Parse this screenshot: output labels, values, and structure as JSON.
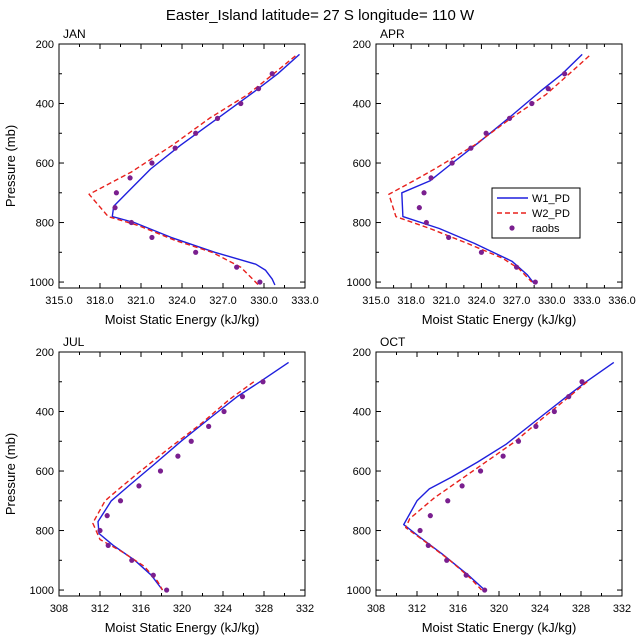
{
  "figure": {
    "title": "Easter_Island  latitude= 27 S longitude= 110 W"
  },
  "legend": {
    "entries": [
      {
        "label": "W1_PD",
        "color": "#1f1fdd",
        "style": "solid"
      },
      {
        "label": "W2_PD",
        "color": "#e8201c",
        "style": "dashed"
      },
      {
        "label": "raobs",
        "color": "#7a1f8f",
        "style": "marker"
      }
    ]
  },
  "chart_data": [
    {
      "type": "line",
      "panel_label": "JAN",
      "xlabel": "Moist Static Energy (kJ/kg)",
      "ylabel": "Pressure (mb)",
      "xlim": [
        315,
        333
      ],
      "xticks": [
        315,
        318,
        321,
        324,
        327,
        330,
        333
      ],
      "xtick_labels": [
        "315.0",
        "318.0",
        "321.0",
        "324.0",
        "327.0",
        "330.0",
        "333.0"
      ],
      "ylim": [
        200,
        1020
      ],
      "yticks": [
        200,
        400,
        600,
        800,
        1000
      ],
      "ytick_labels": [
        "200",
        "400",
        "600",
        "800",
        "1000"
      ],
      "series": [
        {
          "name": "W1_PD",
          "style": "line",
          "points": [
            [
              332.6,
              235
            ],
            [
              331.0,
              300
            ],
            [
              329.3,
              360
            ],
            [
              326.6,
              450
            ],
            [
              323.9,
              540
            ],
            [
              321.7,
              620
            ],
            [
              319.0,
              745
            ],
            [
              318.9,
              780
            ],
            [
              320.5,
              800
            ],
            [
              323.2,
              850
            ],
            [
              326.4,
              900
            ],
            [
              329.4,
              940
            ],
            [
              330.1,
              960
            ],
            [
              330.6,
              990
            ],
            [
              330.8,
              1010
            ]
          ]
        },
        {
          "name": "W2_PD",
          "style": "dashed",
          "points": [
            [
              332.3,
              240
            ],
            [
              330.7,
              300
            ],
            [
              328.8,
              370
            ],
            [
              326.0,
              450
            ],
            [
              323.3,
              540
            ],
            [
              320.3,
              630
            ],
            [
              317.2,
              705
            ],
            [
              318.6,
              780
            ],
            [
              320.8,
              810
            ],
            [
              323.5,
              860
            ],
            [
              326.2,
              900
            ],
            [
              328.3,
              950
            ],
            [
              329.6,
              1010
            ]
          ]
        },
        {
          "name": "raobs",
          "style": "markers",
          "points": [
            [
              330.6,
              300
            ],
            [
              329.6,
              350
            ],
            [
              328.3,
              400
            ],
            [
              326.6,
              450
            ],
            [
              325.0,
              500
            ],
            [
              323.5,
              550
            ],
            [
              321.8,
              600
            ],
            [
              320.2,
              650
            ],
            [
              319.2,
              700
            ],
            [
              319.1,
              750
            ],
            [
              320.3,
              800
            ],
            [
              321.8,
              850
            ],
            [
              325.0,
              900
            ],
            [
              328.0,
              950
            ],
            [
              329.7,
              1000
            ]
          ]
        }
      ]
    },
    {
      "type": "line",
      "panel_label": "APR",
      "xlabel": "Moist Static Energy (kJ/kg)",
      "ylabel": "",
      "xlim": [
        315,
        336
      ],
      "xticks": [
        315,
        318,
        321,
        324,
        327,
        330,
        333,
        336
      ],
      "xtick_labels": [
        "315.0",
        "318.0",
        "321.0",
        "324.0",
        "327.0",
        "330.0",
        "333.0",
        "336.0"
      ],
      "ylim": [
        200,
        1020
      ],
      "yticks": [
        200,
        400,
        600,
        800,
        1000
      ],
      "ytick_labels": [
        "200",
        "400",
        "600",
        "800",
        "1000"
      ],
      "series": [
        {
          "name": "W1_PD",
          "style": "line",
          "points": [
            [
              332.6,
              235
            ],
            [
              330.9,
              300
            ],
            [
              329.0,
              360
            ],
            [
              326.6,
              440
            ],
            [
              323.8,
              530
            ],
            [
              321.2,
              610
            ],
            [
              319.6,
              660
            ],
            [
              317.2,
              700
            ],
            [
              317.3,
              780
            ],
            [
              320.4,
              820
            ],
            [
              323.4,
              870
            ],
            [
              326.6,
              930
            ],
            [
              327.9,
              975
            ],
            [
              328.5,
              1005
            ]
          ]
        },
        {
          "name": "W2_PD",
          "style": "dashed",
          "points": [
            [
              333.2,
              240
            ],
            [
              331.5,
              300
            ],
            [
              329.5,
              370
            ],
            [
              326.5,
              450
            ],
            [
              323.4,
              540
            ],
            [
              320.0,
              620
            ],
            [
              318.2,
              660
            ],
            [
              316.1,
              705
            ],
            [
              316.7,
              780
            ],
            [
              319.6,
              820
            ],
            [
              322.8,
              870
            ],
            [
              325.8,
              920
            ],
            [
              327.2,
              955
            ],
            [
              328.3,
              1000
            ]
          ]
        },
        {
          "name": "raobs",
          "style": "markers",
          "points": [
            [
              331.1,
              300
            ],
            [
              329.7,
              350
            ],
            [
              328.3,
              400
            ],
            [
              326.4,
              450
            ],
            [
              324.4,
              500
            ],
            [
              323.1,
              550
            ],
            [
              321.5,
              600
            ],
            [
              319.7,
              650
            ],
            [
              319.1,
              700
            ],
            [
              318.7,
              750
            ],
            [
              319.3,
              800
            ],
            [
              321.2,
              850
            ],
            [
              324.0,
              900
            ],
            [
              327.0,
              950
            ],
            [
              328.6,
              1000
            ]
          ]
        }
      ]
    },
    {
      "type": "line",
      "panel_label": "JUL",
      "xlabel": "Moist Static Energy (kJ/kg)",
      "ylabel": "Pressure (mb)",
      "xlim": [
        308,
        332
      ],
      "xticks": [
        308,
        312,
        316,
        320,
        324,
        328,
        332
      ],
      "xtick_labels": [
        "308",
        "312",
        "316",
        "320",
        "324",
        "328",
        "332"
      ],
      "ylim": [
        200,
        1020
      ],
      "yticks": [
        200,
        400,
        600,
        800,
        1000
      ],
      "ytick_labels": [
        "200",
        "400",
        "600",
        "800",
        "1000"
      ],
      "series": [
        {
          "name": "W1_PD",
          "style": "line",
          "points": [
            [
              330.4,
              235
            ],
            [
              327.6,
              300
            ],
            [
              325.4,
              350
            ],
            [
              322.8,
              420
            ],
            [
              319.9,
              500
            ],
            [
              317.2,
              580
            ],
            [
              314.8,
              650
            ],
            [
              313.1,
              700
            ],
            [
              311.8,
              770
            ],
            [
              311.9,
              810
            ],
            [
              313.3,
              850
            ],
            [
              315.4,
              900
            ],
            [
              317.0,
              950
            ],
            [
              318.1,
              1000
            ]
          ]
        },
        {
          "name": "W2_PD",
          "style": "dashed",
          "points": [
            [
              327.0,
              300
            ],
            [
              324.6,
              360
            ],
            [
              321.9,
              440
            ],
            [
              318.5,
              530
            ],
            [
              315.6,
              610
            ],
            [
              313.5,
              670
            ],
            [
              312.5,
              700
            ],
            [
              311.3,
              775
            ],
            [
              312.0,
              830
            ],
            [
              314.1,
              870
            ],
            [
              316.3,
              920
            ],
            [
              317.6,
              970
            ],
            [
              318.1,
              1000
            ]
          ]
        },
        {
          "name": "raobs",
          "style": "markers",
          "points": [
            [
              327.9,
              300
            ],
            [
              325.9,
              350
            ],
            [
              324.1,
              400
            ],
            [
              322.6,
              450
            ],
            [
              320.9,
              500
            ],
            [
              319.6,
              550
            ],
            [
              317.9,
              600
            ],
            [
              315.8,
              650
            ],
            [
              314.0,
              700
            ],
            [
              312.7,
              750
            ],
            [
              312.0,
              800
            ],
            [
              312.8,
              850
            ],
            [
              315.1,
              900
            ],
            [
              317.2,
              950
            ],
            [
              318.5,
              1000
            ]
          ]
        }
      ]
    },
    {
      "type": "line",
      "panel_label": "OCT",
      "xlabel": "Moist Static Energy (kJ/kg)",
      "ylabel": "",
      "xlim": [
        308,
        332
      ],
      "xticks": [
        308,
        312,
        316,
        320,
        324,
        328,
        332
      ],
      "xtick_labels": [
        "308",
        "312",
        "316",
        "320",
        "324",
        "328",
        "332"
      ],
      "ylim": [
        200,
        1020
      ],
      "yticks": [
        200,
        400,
        600,
        800,
        1000
      ],
      "ytick_labels": [
        "200",
        "400",
        "600",
        "800",
        "1000"
      ],
      "series": [
        {
          "name": "W1_PD",
          "style": "line",
          "points": [
            [
              331.2,
              235
            ],
            [
              328.5,
              300
            ],
            [
              326.6,
              350
            ],
            [
              324.0,
              420
            ],
            [
              320.7,
              510
            ],
            [
              317.9,
              570
            ],
            [
              315.4,
              620
            ],
            [
              313.2,
              660
            ],
            [
              312.0,
              700
            ],
            [
              310.7,
              780
            ],
            [
              312.2,
              820
            ],
            [
              314.5,
              880
            ],
            [
              317.0,
              950
            ],
            [
              318.6,
              1000
            ]
          ]
        },
        {
          "name": "W2_PD",
          "style": "dashed",
          "points": [
            [
              328.6,
              300
            ],
            [
              326.5,
              360
            ],
            [
              324.0,
              430
            ],
            [
              321.6,
              500
            ],
            [
              318.7,
              570
            ],
            [
              316.2,
              630
            ],
            [
              313.7,
              690
            ],
            [
              311.3,
              760
            ],
            [
              310.9,
              790
            ],
            [
              312.9,
              840
            ],
            [
              315.2,
              900
            ],
            [
              317.2,
              960
            ],
            [
              318.3,
              1000
            ]
          ]
        },
        {
          "name": "raobs",
          "style": "markers",
          "points": [
            [
              328.1,
              300
            ],
            [
              326.8,
              350
            ],
            [
              325.4,
              400
            ],
            [
              323.6,
              450
            ],
            [
              321.9,
              500
            ],
            [
              320.4,
              550
            ],
            [
              318.2,
              600
            ],
            [
              316.4,
              650
            ],
            [
              315.0,
              700
            ],
            [
              313.3,
              750
            ],
            [
              312.3,
              800
            ],
            [
              313.1,
              850
            ],
            [
              314.9,
              900
            ],
            [
              316.8,
              950
            ],
            [
              318.6,
              1000
            ]
          ]
        }
      ]
    }
  ]
}
